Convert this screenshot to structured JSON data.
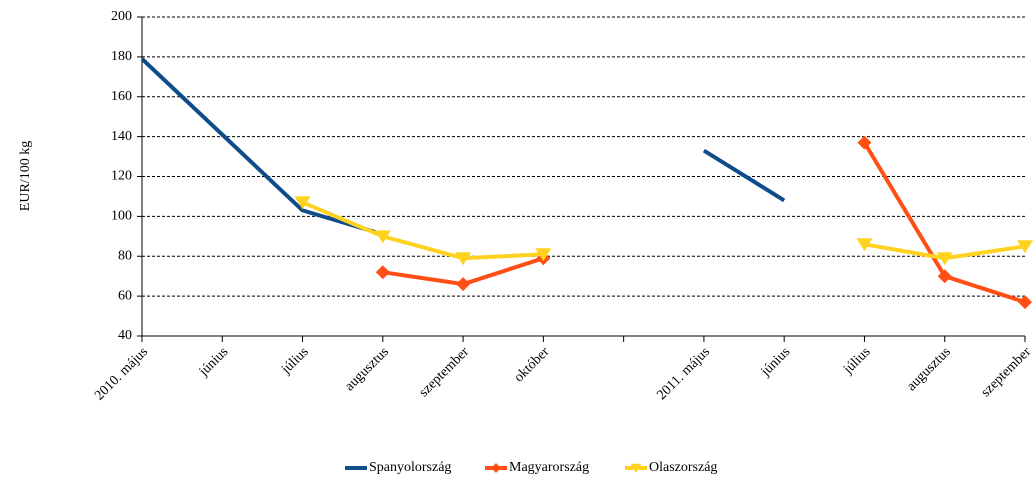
{
  "chart_data": {
    "type": "line",
    "y_label": "EUR/100 kg",
    "categories": [
      "2010. május",
      "június",
      "július",
      "augusztus",
      "szeptember",
      "október",
      null,
      "2011. május",
      "június",
      "július",
      "augusztus",
      "szeptember"
    ],
    "series": [
      {
        "name": "Spanyolország",
        "color": "#0f4c8a",
        "marker": "none",
        "values": [
          179,
          141,
          103,
          91,
          null,
          null,
          null,
          133,
          108,
          null,
          null,
          null
        ]
      },
      {
        "name": "Magyarország",
        "color": "#ff4f14",
        "marker": "diamond",
        "values": [
          null,
          null,
          null,
          72,
          66,
          79,
          null,
          null,
          null,
          137,
          70,
          57
        ]
      },
      {
        "name": "Olaszország",
        "color": "#ffd21f",
        "marker": "triangle",
        "values": [
          null,
          null,
          107,
          90,
          79,
          81,
          null,
          null,
          null,
          86,
          79,
          85
        ]
      }
    ],
    "ylim": [
      40,
      200
    ],
    "yticks": [
      40,
      60,
      80,
      100,
      120,
      140,
      160,
      180,
      200
    ],
    "grid": true,
    "legend": "bottom"
  }
}
